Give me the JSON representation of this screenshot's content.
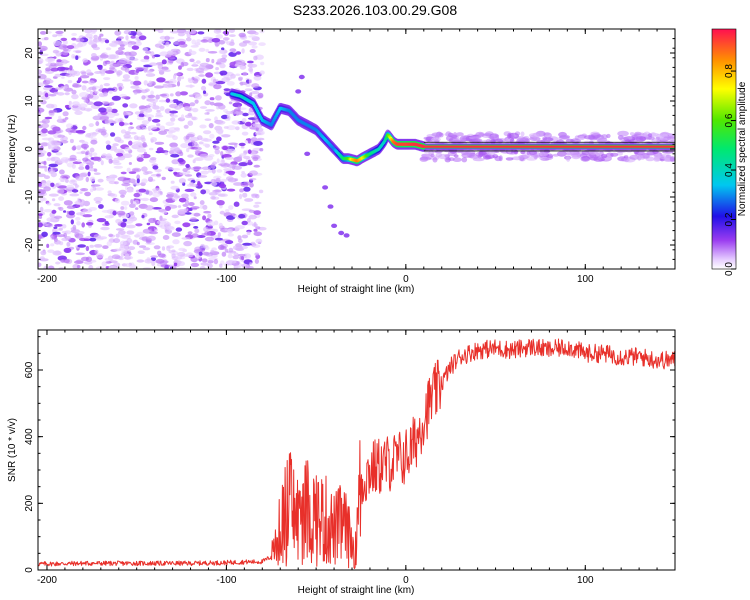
{
  "title": "S233.2026.103.00.29.G08",
  "chart_data": [
    {
      "type": "heatmap",
      "xlabel": "Height of straight line (km)",
      "ylabel": "Frequency (Hz)",
      "xlim": [
        -205,
        150
      ],
      "ylim": [
        -25,
        25
      ],
      "xticks": [
        -200,
        -100,
        0,
        100
      ],
      "xtick_labels": [
        "-200",
        "-100",
        "0",
        "100"
      ],
      "yticks": [
        -20,
        -10,
        0,
        10,
        20
      ],
      "ytick_labels": [
        "-20",
        "-10",
        "0",
        "10",
        "20"
      ],
      "colorbar": {
        "label": "Normalized spectral amplitude",
        "range": [
          0,
          0.97
        ],
        "ticks": [
          0.0,
          0.2,
          0.4,
          0.6,
          0.8
        ],
        "tick_labels": [
          "0.0",
          "0.2",
          "0.4",
          "0.6",
          "0.8"
        ]
      },
      "ridge": {
        "x": [
          -97,
          -92,
          -85,
          -80,
          -75,
          -70,
          -65,
          -60,
          -55,
          -50,
          -45,
          -40,
          -35,
          -32,
          -30,
          -27,
          -25,
          -20,
          -15,
          -12,
          -10,
          -7,
          -5,
          0,
          5,
          10,
          20,
          40,
          60,
          80,
          100,
          120,
          150
        ],
        "y": [
          11.5,
          11,
          9.5,
          6,
          5,
          8.5,
          8,
          6,
          5,
          4,
          2,
          0,
          -2,
          -2,
          -2.2,
          -2.5,
          -2,
          -1,
          0,
          1.5,
          3,
          1.5,
          1,
          1,
          1,
          0.5,
          0.5,
          0.5,
          0.5,
          0.5,
          0.5,
          0.5,
          0.5
        ],
        "amplitude": [
          0.35,
          0.4,
          0.35,
          0.35,
          0.3,
          0.35,
          0.3,
          0.3,
          0.3,
          0.3,
          0.35,
          0.3,
          0.5,
          0.6,
          0.8,
          0.9,
          0.8,
          0.5,
          0.4,
          0.4,
          0.6,
          0.9,
          0.95,
          0.95,
          0.97,
          0.97,
          0.97,
          0.97,
          0.97,
          0.97,
          0.97,
          0.97,
          0.97
        ]
      }
    },
    {
      "type": "line",
      "xlabel": "Height of straight line (km)",
      "ylabel": "SNR (10 * v/v)",
      "xlim": [
        -205,
        150
      ],
      "ylim": [
        0,
        720
      ],
      "xticks": [
        -200,
        -100,
        0,
        100
      ],
      "xtick_labels": [
        "-200",
        "-100",
        "0",
        "100"
      ],
      "yticks": [
        0,
        200,
        400,
        600
      ],
      "ytick_labels": [
        "0",
        "200",
        "400",
        "600"
      ],
      "color": "#e8302a",
      "series": [
        {
          "name": "SNR",
          "x": [
            -205,
            -180,
            -150,
            -120,
            -100,
            -90,
            -80,
            -75,
            -70,
            -65,
            -60,
            -55,
            -50,
            -45,
            -40,
            -35,
            -30,
            -28,
            -25,
            -20,
            -15,
            -10,
            -5,
            0,
            5,
            10,
            15,
            20,
            25,
            30,
            40,
            50,
            60,
            70,
            80,
            90,
            100,
            110,
            120,
            130,
            140,
            150
          ],
          "y": [
            18,
            20,
            20,
            20,
            22,
            24,
            25,
            40,
            120,
            200,
            150,
            180,
            160,
            150,
            120,
            140,
            80,
            60,
            260,
            300,
            310,
            320,
            330,
            340,
            380,
            460,
            520,
            560,
            610,
            640,
            660,
            665,
            660,
            670,
            660,
            670,
            650,
            650,
            640,
            640,
            630,
            630
          ]
        }
      ]
    }
  ]
}
